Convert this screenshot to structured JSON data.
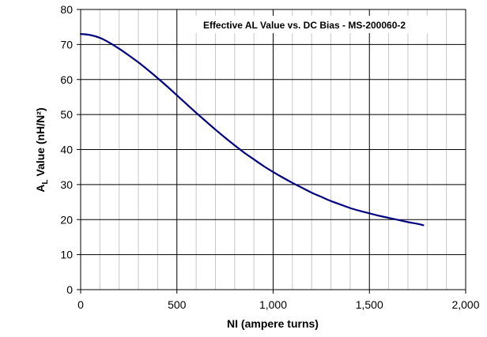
{
  "chart_data": {
    "type": "line",
    "title": "Effective AL Value vs. DC Bias - MS-200060-2",
    "xlabel": "NI (ampere turns)",
    "ylabel_main": "A",
    "ylabel_sub": "L",
    "ylabel_rest": " Value (nH/N²)",
    "xlim": [
      0,
      2000
    ],
    "ylim": [
      0,
      80
    ],
    "x_major_ticks": [
      0,
      500,
      1000,
      1500,
      2000
    ],
    "x_tick_labels": [
      "0",
      "500",
      "1,000",
      "1,500",
      "2,000"
    ],
    "x_minor_step": 100,
    "y_ticks": [
      0,
      10,
      20,
      30,
      40,
      50,
      60,
      70,
      80
    ],
    "y_tick_labels": [
      "0",
      "10",
      "20",
      "30",
      "40",
      "50",
      "60",
      "70",
      "80"
    ],
    "grid": true,
    "legend": "none",
    "series": [
      {
        "color": "#000080",
        "x": [
          0,
          50,
          100,
          150,
          200,
          250,
          300,
          350,
          400,
          450,
          500,
          550,
          600,
          650,
          700,
          750,
          800,
          850,
          900,
          950,
          1000,
          1050,
          1100,
          1150,
          1200,
          1250,
          1300,
          1350,
          1400,
          1450,
          1500,
          1550,
          1600,
          1650,
          1700,
          1750,
          1780
        ],
        "y": [
          73.0,
          72.7,
          71.9,
          70.5,
          68.8,
          66.9,
          64.9,
          62.7,
          60.4,
          58.0,
          55.5,
          53.0,
          50.5,
          48.1,
          45.7,
          43.4,
          41.2,
          39.1,
          37.2,
          35.3,
          33.6,
          32.0,
          30.5,
          29.1,
          27.7,
          26.5,
          25.3,
          24.3,
          23.3,
          22.5,
          21.8,
          21.1,
          20.5,
          19.9,
          19.3,
          18.8,
          18.4
        ]
      }
    ]
  }
}
